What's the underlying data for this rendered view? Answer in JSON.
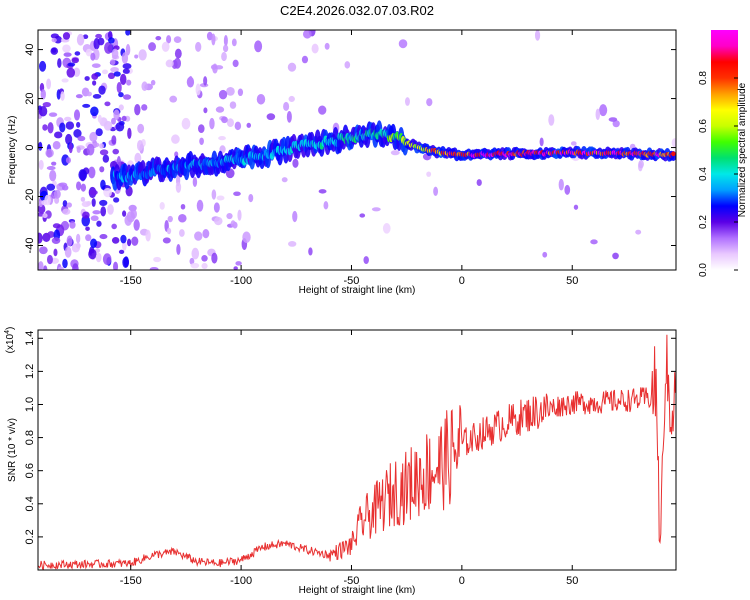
{
  "title": "C2E4.2026.032.07.03.R02",
  "chart_data": [
    {
      "type": "heatmap",
      "xlabel": "Height of straight line (km)",
      "ylabel": "Frequency (Hz)",
      "xlim": [
        -192,
        97
      ],
      "ylim": [
        -50,
        48
      ],
      "x_ticks": [
        -150,
        -100,
        -50,
        0,
        50
      ],
      "x_tick_labels": [
        "-150",
        "-100",
        "-50",
        "0",
        "50"
      ],
      "y_ticks": [
        -40,
        -20,
        0,
        20,
        40
      ],
      "y_tick_labels": [
        "-40",
        "-20",
        "0",
        "20",
        "40"
      ],
      "colorbar": {
        "label": "Normalized spectral amplitude",
        "range": [
          0,
          1
        ],
        "ticks": [
          0.0,
          0.2,
          0.4,
          0.6,
          0.8
        ],
        "tick_labels": [
          "0.0",
          "0.2",
          "0.4",
          "0.6",
          "0.8"
        ],
        "colors": [
          "#ffffff",
          "#e9c8ff",
          "#b070ff",
          "#5a00e6",
          "#0000ff",
          "#00a0ff",
          "#00e8e8",
          "#00e070",
          "#40ff00",
          "#c8ff00",
          "#ffff00",
          "#ffa000",
          "#ff3000",
          "#ff0000",
          "#ff00c8",
          "#ff00ff"
        ]
      },
      "ridge": {
        "description_points_x": [
          -155,
          -130,
          -100,
          -75,
          -50,
          -40,
          -30,
          -20,
          -10,
          0,
          50,
          95
        ],
        "frequency_hz": [
          -12,
          -8,
          -5,
          0,
          4,
          6,
          4,
          0,
          -2,
          -3,
          -2,
          -3
        ],
        "amplitude": [
          0.35,
          0.35,
          0.4,
          0.4,
          0.5,
          0.45,
          0.6,
          0.7,
          0.85,
          0.95,
          0.95,
          0.95
        ]
      }
    },
    {
      "type": "line",
      "xlabel": "Height of straight line (km)",
      "ylabel": "SNR (10 * v/v)",
      "y_scale_label": "(x10",
      "y_scale_exp": "4",
      "xlim": [
        -192,
        97
      ],
      "ylim": [
        0,
        14500
      ],
      "x_ticks": [
        -150,
        -100,
        -50,
        0,
        50
      ],
      "x_tick_labels": [
        "-150",
        "-100",
        "-50",
        "0",
        "50"
      ],
      "y_ticks": [
        2000,
        4000,
        6000,
        8000,
        10000,
        12000,
        14000
      ],
      "y_tick_labels": [
        "0.2",
        "0.4",
        "0.6",
        "0.8",
        "1.0",
        "1.2",
        "1.4"
      ],
      "series": [
        {
          "color": "#e83030",
          "x": [
            -192,
            -170,
            -150,
            -140,
            -130,
            -120,
            -110,
            -100,
            -90,
            -80,
            -70,
            -60,
            -50,
            -45,
            -40,
            -35,
            -30,
            -25,
            -20,
            -15,
            -10,
            -5,
            0,
            10,
            20,
            30,
            40,
            50,
            60,
            70,
            80,
            85,
            88,
            90,
            92,
            95,
            97
          ],
          "values": [
            300,
            350,
            400,
            900,
            1100,
            500,
            400,
            600,
            1400,
            1600,
            1200,
            900,
            1500,
            3000,
            3500,
            4200,
            4800,
            5000,
            5600,
            6000,
            6300,
            6900,
            7600,
            8300,
            8900,
            9400,
            9800,
            10100,
            10100,
            10200,
            10300,
            10400,
            11000,
            1600,
            12200,
            9800,
            10200
          ]
        }
      ]
    }
  ]
}
